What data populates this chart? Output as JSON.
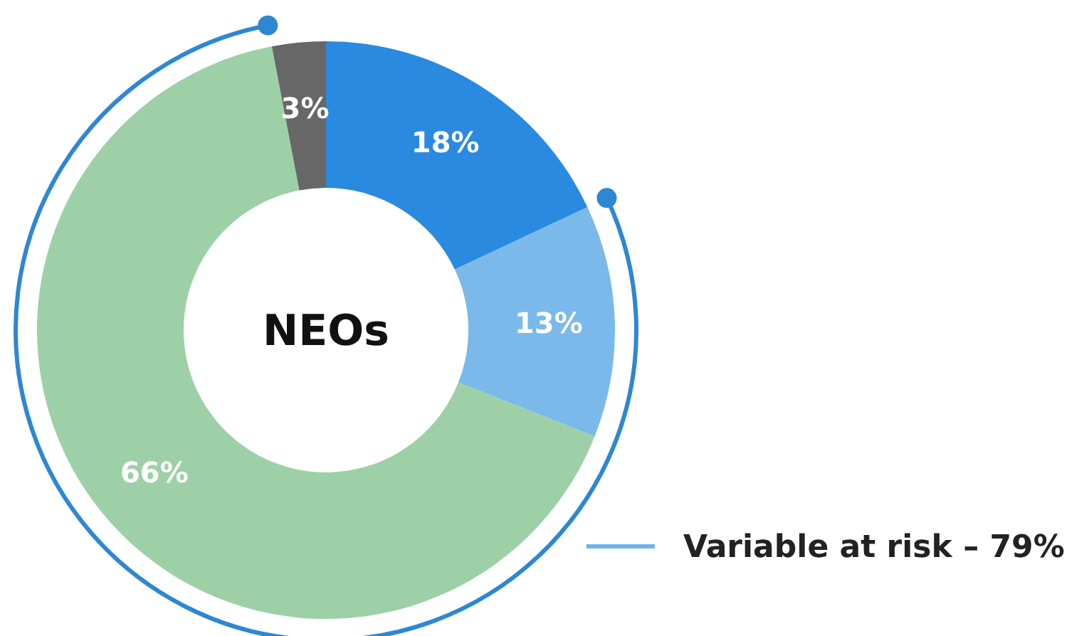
{
  "chart_data": {
    "type": "donut",
    "title": "NEOs",
    "categories": [
      null,
      null,
      null,
      null
    ],
    "values": [
      18,
      13,
      66,
      3
    ],
    "colors": [
      "#2a8ae0",
      "#7ab9ea",
      "#9dd0a6",
      "#676767"
    ],
    "value_labels": [
      "18%",
      "13%",
      "66%",
      "3%"
    ],
    "annotations": [
      "Variable at risk – 79%"
    ]
  }
}
